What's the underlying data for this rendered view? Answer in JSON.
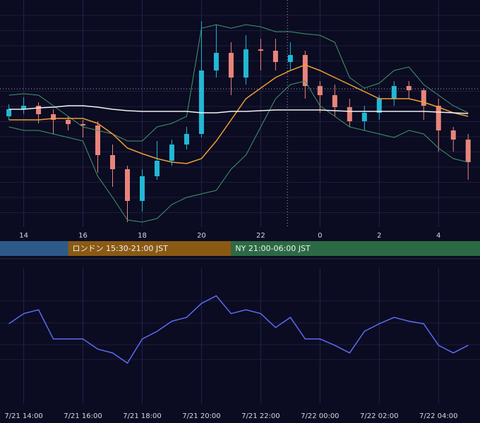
{
  "chart_data": [
    {
      "type": "candlestick",
      "x": [
        13.5,
        14,
        14.5,
        15,
        15.5,
        16,
        16.5,
        17,
        17.5,
        18,
        18.5,
        19,
        19.5,
        20,
        20.5,
        21,
        21.5,
        22,
        22.5,
        23,
        23.5,
        24,
        24.5,
        25,
        25.5,
        26,
        26.5,
        27,
        27.5,
        28,
        28.5,
        29
      ],
      "open": [
        155,
        165,
        170,
        158,
        150,
        144,
        142,
        100,
        80,
        35,
        70,
        92,
        115,
        130,
        220,
        245,
        210,
        250,
        248,
        232,
        242,
        198,
        185,
        168,
        148,
        160,
        180,
        198,
        192,
        170,
        135,
        122
      ],
      "high": [
        172,
        182,
        175,
        165,
        155,
        150,
        148,
        115,
        85,
        80,
        120,
        122,
        140,
        290,
        285,
        260,
        270,
        265,
        265,
        260,
        248,
        205,
        200,
        180,
        170,
        185,
        205,
        205,
        195,
        180,
        140,
        130
      ],
      "low": [
        150,
        158,
        145,
        130,
        135,
        125,
        75,
        55,
        5,
        20,
        65,
        85,
        108,
        125,
        210,
        185,
        200,
        220,
        220,
        220,
        180,
        160,
        155,
        140,
        135,
        150,
        170,
        180,
        150,
        105,
        105,
        65
      ],
      "close": [
        165,
        170,
        158,
        150,
        144,
        142,
        100,
        80,
        35,
        70,
        92,
        115,
        130,
        220,
        245,
        210,
        250,
        248,
        232,
        242,
        198,
        185,
        168,
        148,
        160,
        180,
        198,
        192,
        170,
        135,
        122,
        90
      ],
      "up_color": "#22b8d4",
      "down_color": "#e8857a",
      "series": [
        {
          "color": "#3f9a6a",
          "values": [
            185,
            187,
            185,
            170,
            155,
            140,
            135,
            130,
            120,
            120,
            140,
            145,
            155,
            280,
            285,
            280,
            285,
            282,
            275,
            275,
            272,
            270,
            260,
            210,
            195,
            202,
            220,
            225,
            200,
            185,
            170,
            160
          ]
        },
        {
          "color": "#3f9a6a",
          "values": [
            140,
            135,
            135,
            130,
            125,
            120,
            70,
            40,
            8,
            5,
            10,
            30,
            40,
            45,
            50,
            80,
            100,
            140,
            180,
            200,
            205,
            170,
            155,
            140,
            135,
            130,
            125,
            135,
            130,
            110,
            95,
            90
          ]
        },
        {
          "color": "#f0a030",
          "values": [
            150,
            150,
            150,
            152,
            152,
            152,
            145,
            130,
            110,
            102,
            95,
            90,
            88,
            95,
            120,
            150,
            180,
            195,
            210,
            220,
            228,
            220,
            210,
            200,
            190,
            180,
            180,
            180,
            175,
            168,
            160,
            155
          ]
        },
        {
          "color": "#f2f2f2",
          "values": [
            165,
            165,
            167,
            168,
            170,
            170,
            168,
            165,
            163,
            162,
            162,
            162,
            162,
            160,
            160,
            162,
            162,
            163,
            164,
            164,
            164,
            164,
            163,
            162,
            162,
            162,
            162,
            162,
            162,
            161,
            160,
            159
          ]
        }
      ],
      "xlim": [
        13.2,
        29.4
      ],
      "ylim": [
        0,
        320
      ],
      "xticks": [
        14,
        16,
        18,
        20,
        22,
        {
          "value": 24,
          "label": "0"
        },
        {
          "value": 26,
          "label": "2"
        },
        {
          "value": 28,
          "label": "4"
        }
      ],
      "price_line": 194,
      "cursor_x": 22.9,
      "sessions": [
        {
          "start": 9,
          "end": 15.5,
          "color": "#2d5a8a"
        },
        {
          "start": 15.5,
          "end": 21,
          "color": "#8a5a14",
          "label": "ロンドン 15:30-21:00 JST"
        },
        {
          "start": 21,
          "end": 30,
          "color": "#2c6a45",
          "label": "NY 21:00-06:00 JST"
        }
      ]
    },
    {
      "type": "line",
      "x": [
        13.5,
        14,
        14.5,
        15,
        15.5,
        16,
        16.5,
        17,
        17.5,
        18,
        18.5,
        19,
        19.5,
        20,
        20.5,
        21,
        21.5,
        22,
        22.5,
        23,
        23.5,
        24,
        24.5,
        25,
        25.5,
        26,
        26.5,
        27,
        27.5,
        28,
        28.5,
        29
      ],
      "series": [
        {
          "color": "#5b6cf0",
          "values": [
            56,
            64,
            67,
            44,
            44,
            44,
            36,
            33,
            25,
            44,
            50,
            58,
            61,
            72,
            78,
            64,
            67,
            64,
            53,
            61,
            44,
            44,
            39,
            33,
            50,
            56,
            61,
            58,
            56,
            39,
            33,
            39
          ]
        }
      ],
      "xlim": [
        13.2,
        29.4
      ],
      "ylim": [
        0,
        100
      ],
      "xticks": [
        {
          "value": 14,
          "label": "7/21 14:00"
        },
        {
          "value": 16,
          "label": "7/21 16:00"
        },
        {
          "value": 18,
          "label": "7/21 18:00"
        },
        {
          "value": 20,
          "label": "7/21 20:00"
        },
        {
          "value": 22,
          "label": "7/21 22:00"
        },
        {
          "value": 24,
          "label": "7/22 00:00"
        },
        {
          "value": 26,
          "label": "7/22 02:00"
        },
        {
          "value": 28,
          "label": "7/22 04:00"
        }
      ]
    }
  ]
}
